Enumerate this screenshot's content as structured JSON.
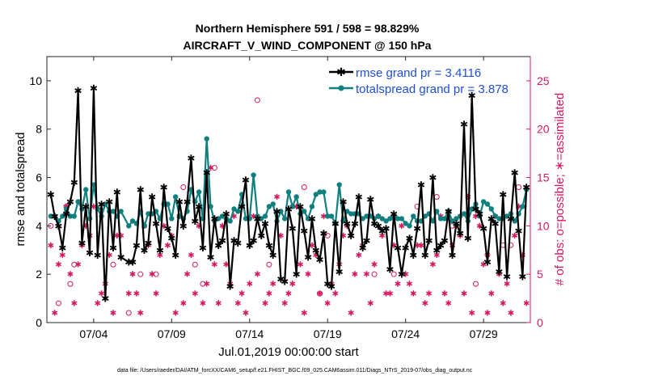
{
  "chart_data": {
    "type": "line",
    "title_line1": "Northern Hemisphere 591 / 598 = 98.829%",
    "title_line2": "AIRCRAFT_V_WIND_COMPONENT @ 150 hPa",
    "xlabel": "Jul.01,2019 00:00:00 start",
    "ylabel_left": "rmse and totalspread",
    "ylabel_right": "# of obs: o=possible; ∗=assimilated",
    "footnote": "data file: /Users/raeder/DAI/ATM_forcXX/CAM6_setup/f.e21.FHIST_BGC.f09_025.CAM6assim.011/Diags_NTrS_2019-07/obs_diag_output.nc",
    "xlim": [
      1.0,
      32.0
    ],
    "ylim_left": [
      0,
      11
    ],
    "ylim_right": [
      0,
      27.5
    ],
    "x_ticks": [
      {
        "value": 4,
        "label": "07/04"
      },
      {
        "value": 9,
        "label": "07/09"
      },
      {
        "value": 14,
        "label": "07/14"
      },
      {
        "value": 19,
        "label": "07/19"
      },
      {
        "value": 24,
        "label": "07/24"
      },
      {
        "value": 29,
        "label": "07/29"
      }
    ],
    "y_ticks_left": [
      0,
      2,
      4,
      6,
      8,
      10
    ],
    "y_ticks_right": [
      0,
      5,
      10,
      15,
      20,
      25
    ],
    "colors": {
      "rmse": "#000000",
      "spread": "#0f7f7f",
      "obs": "#d8175f",
      "legend_text": "#1f4fd8"
    },
    "legend": [
      {
        "name": "rmse grand pr = 3.4116"
      },
      {
        "name": "totalspread grand pr = 3.878"
      }
    ],
    "series": [
      {
        "name": "rmse",
        "x": [
          1.25,
          1.5,
          1.75,
          2.0,
          2.25,
          2.5,
          2.75,
          3.0,
          3.25,
          3.5,
          3.75,
          4.0,
          4.25,
          4.5,
          4.75,
          5.0,
          5.25,
          5.5,
          5.75,
          6.25,
          6.5,
          6.75,
          7.0,
          7.25,
          7.5,
          7.75,
          8.0,
          8.25,
          8.5,
          8.75,
          9.0,
          9.25,
          9.5,
          9.75,
          10.0,
          10.25,
          10.5,
          10.75,
          11.0,
          11.25,
          11.5,
          11.75,
          12.0,
          12.25,
          12.5,
          12.75,
          13.0,
          13.25,
          13.5,
          13.75,
          14.0,
          14.25,
          14.5,
          14.75,
          15.0,
          15.25,
          15.5,
          15.75,
          16.0,
          16.25,
          16.5,
          16.75,
          17.0,
          17.25,
          17.5,
          17.75,
          18.0,
          18.25,
          18.5,
          18.75,
          19.0,
          19.25,
          19.5,
          19.75,
          20.0,
          20.25,
          20.5,
          20.75,
          21.0,
          21.25,
          21.5,
          21.75,
          22.0,
          22.25,
          22.5,
          22.75,
          23.0,
          23.25,
          23.5,
          23.75,
          24.0,
          24.25,
          24.5,
          24.75,
          25.0,
          25.25,
          25.5,
          25.75,
          26.0,
          26.25,
          26.5,
          26.75,
          27.0,
          27.25,
          27.5,
          27.75,
          28.0,
          28.25,
          28.5,
          28.75,
          29.0,
          29.25,
          29.5,
          29.75,
          30.0,
          30.25,
          30.5,
          30.75,
          31.0,
          31.25,
          31.5,
          31.75
        ],
        "values": [
          5.3,
          4.4,
          4.0,
          3.1,
          4.5,
          5.0,
          5.8,
          9.6,
          3.3,
          4.8,
          2.9,
          9.7,
          2.8,
          4.9,
          1.0,
          5.0,
          3.1,
          5.4,
          2.7,
          2.5,
          2.5,
          3.2,
          5.5,
          3.0,
          3.3,
          5.2,
          4.1,
          3.0,
          5.6,
          3.9,
          3.5,
          2.8,
          5.0,
          4.0,
          5.0,
          6.8,
          4.2,
          4.8,
          3.1,
          6.2,
          2.7,
          4.3,
          3.2,
          3.4,
          4.5,
          1.5,
          3.4,
          3.3,
          4.8,
          5.9,
          3.2,
          3.4,
          4.3,
          3.6,
          4.1,
          3.2,
          2.8,
          4.6,
          1.8,
          1.7,
          4.7,
          3.9,
          2.0,
          4.8,
          3.8,
          2.7,
          4.3,
          3.0,
          2.6,
          3.7,
          1.6,
          1.5,
          4.1,
          2.1,
          5.0,
          4.1,
          3.6,
          4.1,
          5.2,
          3.1,
          3.4,
          5.1,
          4.1,
          4.0,
          3.8,
          3.9,
          2.2,
          4.5,
          3.1,
          2.0,
          3.1,
          3.5,
          2.8,
          3.9,
          5.7,
          2.8,
          3.4,
          6.0,
          3.0,
          3.2,
          3.4,
          4.6,
          2.8,
          4.1,
          3.7,
          8.2,
          3.5,
          9.4,
          4.7,
          4.5,
          3.9,
          2.5,
          4.3,
          4.1,
          2.1,
          5.3,
          1.9,
          4.3,
          6.2,
          3.8,
          1.9,
          5.6
        ]
      },
      {
        "name": "totalspread",
        "x": [
          1.25,
          1.5,
          1.75,
          2.0,
          2.25,
          2.5,
          2.75,
          3.0,
          3.25,
          3.5,
          3.75,
          4.0,
          4.25,
          4.5,
          4.75,
          5.0,
          5.25,
          5.5,
          5.75,
          6.25,
          6.5,
          6.75,
          7.0,
          7.25,
          7.5,
          7.75,
          8.0,
          8.25,
          8.5,
          8.75,
          9.0,
          9.25,
          9.5,
          9.75,
          10.0,
          10.25,
          10.5,
          10.75,
          11.0,
          11.25,
          11.5,
          11.75,
          12.0,
          12.25,
          12.5,
          12.75,
          13.0,
          13.25,
          13.5,
          13.75,
          14.0,
          14.25,
          14.5,
          14.75,
          15.0,
          15.25,
          15.5,
          15.75,
          16.0,
          16.25,
          16.5,
          16.75,
          17.0,
          17.25,
          17.5,
          17.75,
          18.0,
          18.25,
          18.5,
          18.75,
          19.0,
          19.25,
          19.5,
          19.75,
          20.0,
          20.25,
          20.5,
          20.75,
          21.0,
          21.25,
          21.5,
          21.75,
          22.0,
          22.25,
          22.5,
          22.75,
          23.0,
          23.25,
          23.5,
          23.75,
          24.0,
          24.25,
          24.5,
          24.75,
          25.0,
          25.25,
          25.5,
          25.75,
          26.0,
          26.25,
          26.5,
          26.75,
          27.0,
          27.25,
          27.5,
          27.75,
          28.0,
          28.25,
          28.5,
          28.75,
          29.0,
          29.25,
          29.5,
          29.75,
          30.0,
          30.25,
          30.5,
          30.75,
          31.0,
          31.25,
          31.5,
          31.75
        ],
        "values": [
          4.4,
          4.4,
          4.2,
          4.4,
          4.7,
          4.4,
          4.4,
          5.0,
          4.7,
          5.5,
          4.3,
          5.7,
          4.7,
          4.4,
          4.9,
          4.6,
          4.6,
          4.4,
          4.6,
          4.0,
          4.2,
          4.1,
          4.6,
          4.0,
          4.5,
          4.5,
          4.6,
          4.3,
          4.9,
          4.9,
          4.3,
          5.2,
          4.4,
          4.3,
          4.6,
          5.5,
          5.0,
          5.4,
          4.3,
          7.6,
          4.8,
          4.2,
          4.3,
          4.4,
          4.3,
          4.2,
          4.7,
          4.6,
          5.3,
          4.3,
          4.3,
          6.1,
          4.4,
          4.3,
          4.4,
          4.8,
          4.9,
          4.2,
          4.6,
          4.3,
          5.4,
          4.8,
          5.2,
          4.5,
          4.6,
          4.3,
          4.8,
          5.3,
          5.4,
          5.4,
          4.4,
          4.4,
          4.1,
          5.7,
          4.2,
          4.6,
          4.5,
          4.5,
          4.5,
          4.3,
          4.4,
          4.4,
          4.3,
          4.4,
          4.3,
          4.2,
          4.3,
          4.4,
          4.3,
          4.3,
          4.1,
          4.0,
          4.4,
          4.2,
          4.2,
          4.4,
          4.5,
          4.2,
          4.6,
          4.3,
          4.3,
          4.6,
          4.2,
          4.3,
          4.4,
          4.5,
          4.2,
          4.7,
          4.9,
          4.4,
          5.0,
          4.9,
          4.7,
          4.4,
          4.3,
          4.3,
          4.4,
          4.5,
          4.2,
          4.5,
          4.8,
          5.5
        ]
      }
    ],
    "obs_possible": {
      "x": [
        1.25,
        1.75,
        2.25,
        2.5,
        2.75,
        4.5,
        5.25,
        6.25,
        7.0,
        8.0,
        9.75,
        10.5,
        11.0,
        11.75,
        14.5,
        15.25,
        17.5,
        18.5,
        19.0,
        22.0,
        23.25,
        24.75,
        26.0,
        27.0,
        28.5,
        29.25,
        30.25,
        30.75,
        31.25
      ],
      "values": [
        10,
        2,
        12,
        4,
        6,
        12,
        6,
        1,
        5,
        5,
        14,
        6,
        4,
        16,
        23,
        6,
        14,
        3,
        9,
        5,
        5,
        12,
        13,
        10,
        4,
        7,
        8,
        8,
        14
      ]
    },
    "obs_assimilated": {
      "x": [
        1.25,
        1.5,
        1.75,
        2.0,
        2.25,
        2.5,
        2.75,
        3.0,
        3.25,
        3.5,
        3.75,
        4.0,
        4.25,
        4.5,
        4.75,
        5.0,
        5.25,
        5.5,
        5.75,
        6.25,
        6.5,
        6.75,
        7.0,
        7.25,
        7.5,
        7.75,
        8.0,
        8.25,
        8.5,
        8.75,
        9.0,
        9.25,
        9.5,
        9.75,
        10.0,
        10.25,
        10.5,
        10.75,
        11.0,
        11.25,
        11.5,
        11.75,
        12.0,
        12.25,
        12.5,
        12.75,
        13.0,
        13.25,
        13.5,
        13.75,
        14.0,
        14.25,
        14.5,
        14.75,
        15.0,
        15.25,
        15.5,
        15.75,
        16.0,
        16.25,
        16.5,
        16.75,
        17.0,
        17.25,
        17.5,
        17.75,
        18.0,
        18.25,
        18.5,
        18.75,
        19.0,
        19.25,
        19.5,
        19.75,
        20.0,
        20.25,
        20.5,
        20.75,
        21.0,
        21.25,
        21.5,
        21.75,
        22.0,
        22.25,
        22.5,
        22.75,
        23.0,
        23.25,
        23.5,
        23.75,
        24.0,
        24.25,
        24.5,
        24.75,
        25.0,
        25.25,
        25.5,
        25.75,
        26.0,
        26.25,
        26.5,
        26.75,
        27.0,
        27.25,
        27.5,
        27.75,
        28.0,
        28.25,
        28.5,
        28.75,
        29.0,
        29.25,
        29.5,
        29.75,
        30.0,
        30.25,
        30.5,
        30.75,
        31.0,
        31.25,
        31.5,
        31.75
      ],
      "values": [
        8,
        1,
        6,
        7,
        12,
        5,
        2,
        6,
        8,
        10,
        9,
        12,
        2,
        3,
        4,
        7,
        1,
        9,
        9,
        3,
        5,
        3,
        1,
        10,
        8,
        5,
        3,
        7,
        10,
        8,
        9,
        1,
        11,
        2,
        5,
        7,
        3,
        10,
        2,
        4,
        16,
        6,
        2,
        10,
        6,
        4,
        11,
        2,
        3,
        1,
        4,
        11,
        5,
        9,
        2,
        3,
        4,
        13,
        9,
        2,
        3,
        4,
        12,
        6,
        1,
        5,
        8,
        7,
        3,
        11,
        2,
        4,
        3,
        6,
        9,
        10,
        1,
        5,
        7,
        8,
        5,
        2,
        6,
        11,
        9,
        3,
        3,
        8,
        4,
        10,
        5,
        4,
        3,
        8,
        8,
        2,
        3,
        6,
        7,
        11,
        3,
        2,
        8,
        10,
        9,
        3,
        13,
        1,
        11,
        10,
        6,
        1,
        3,
        11,
        5,
        2,
        4,
        1,
        9,
        12,
        7,
        2
      ]
    }
  }
}
